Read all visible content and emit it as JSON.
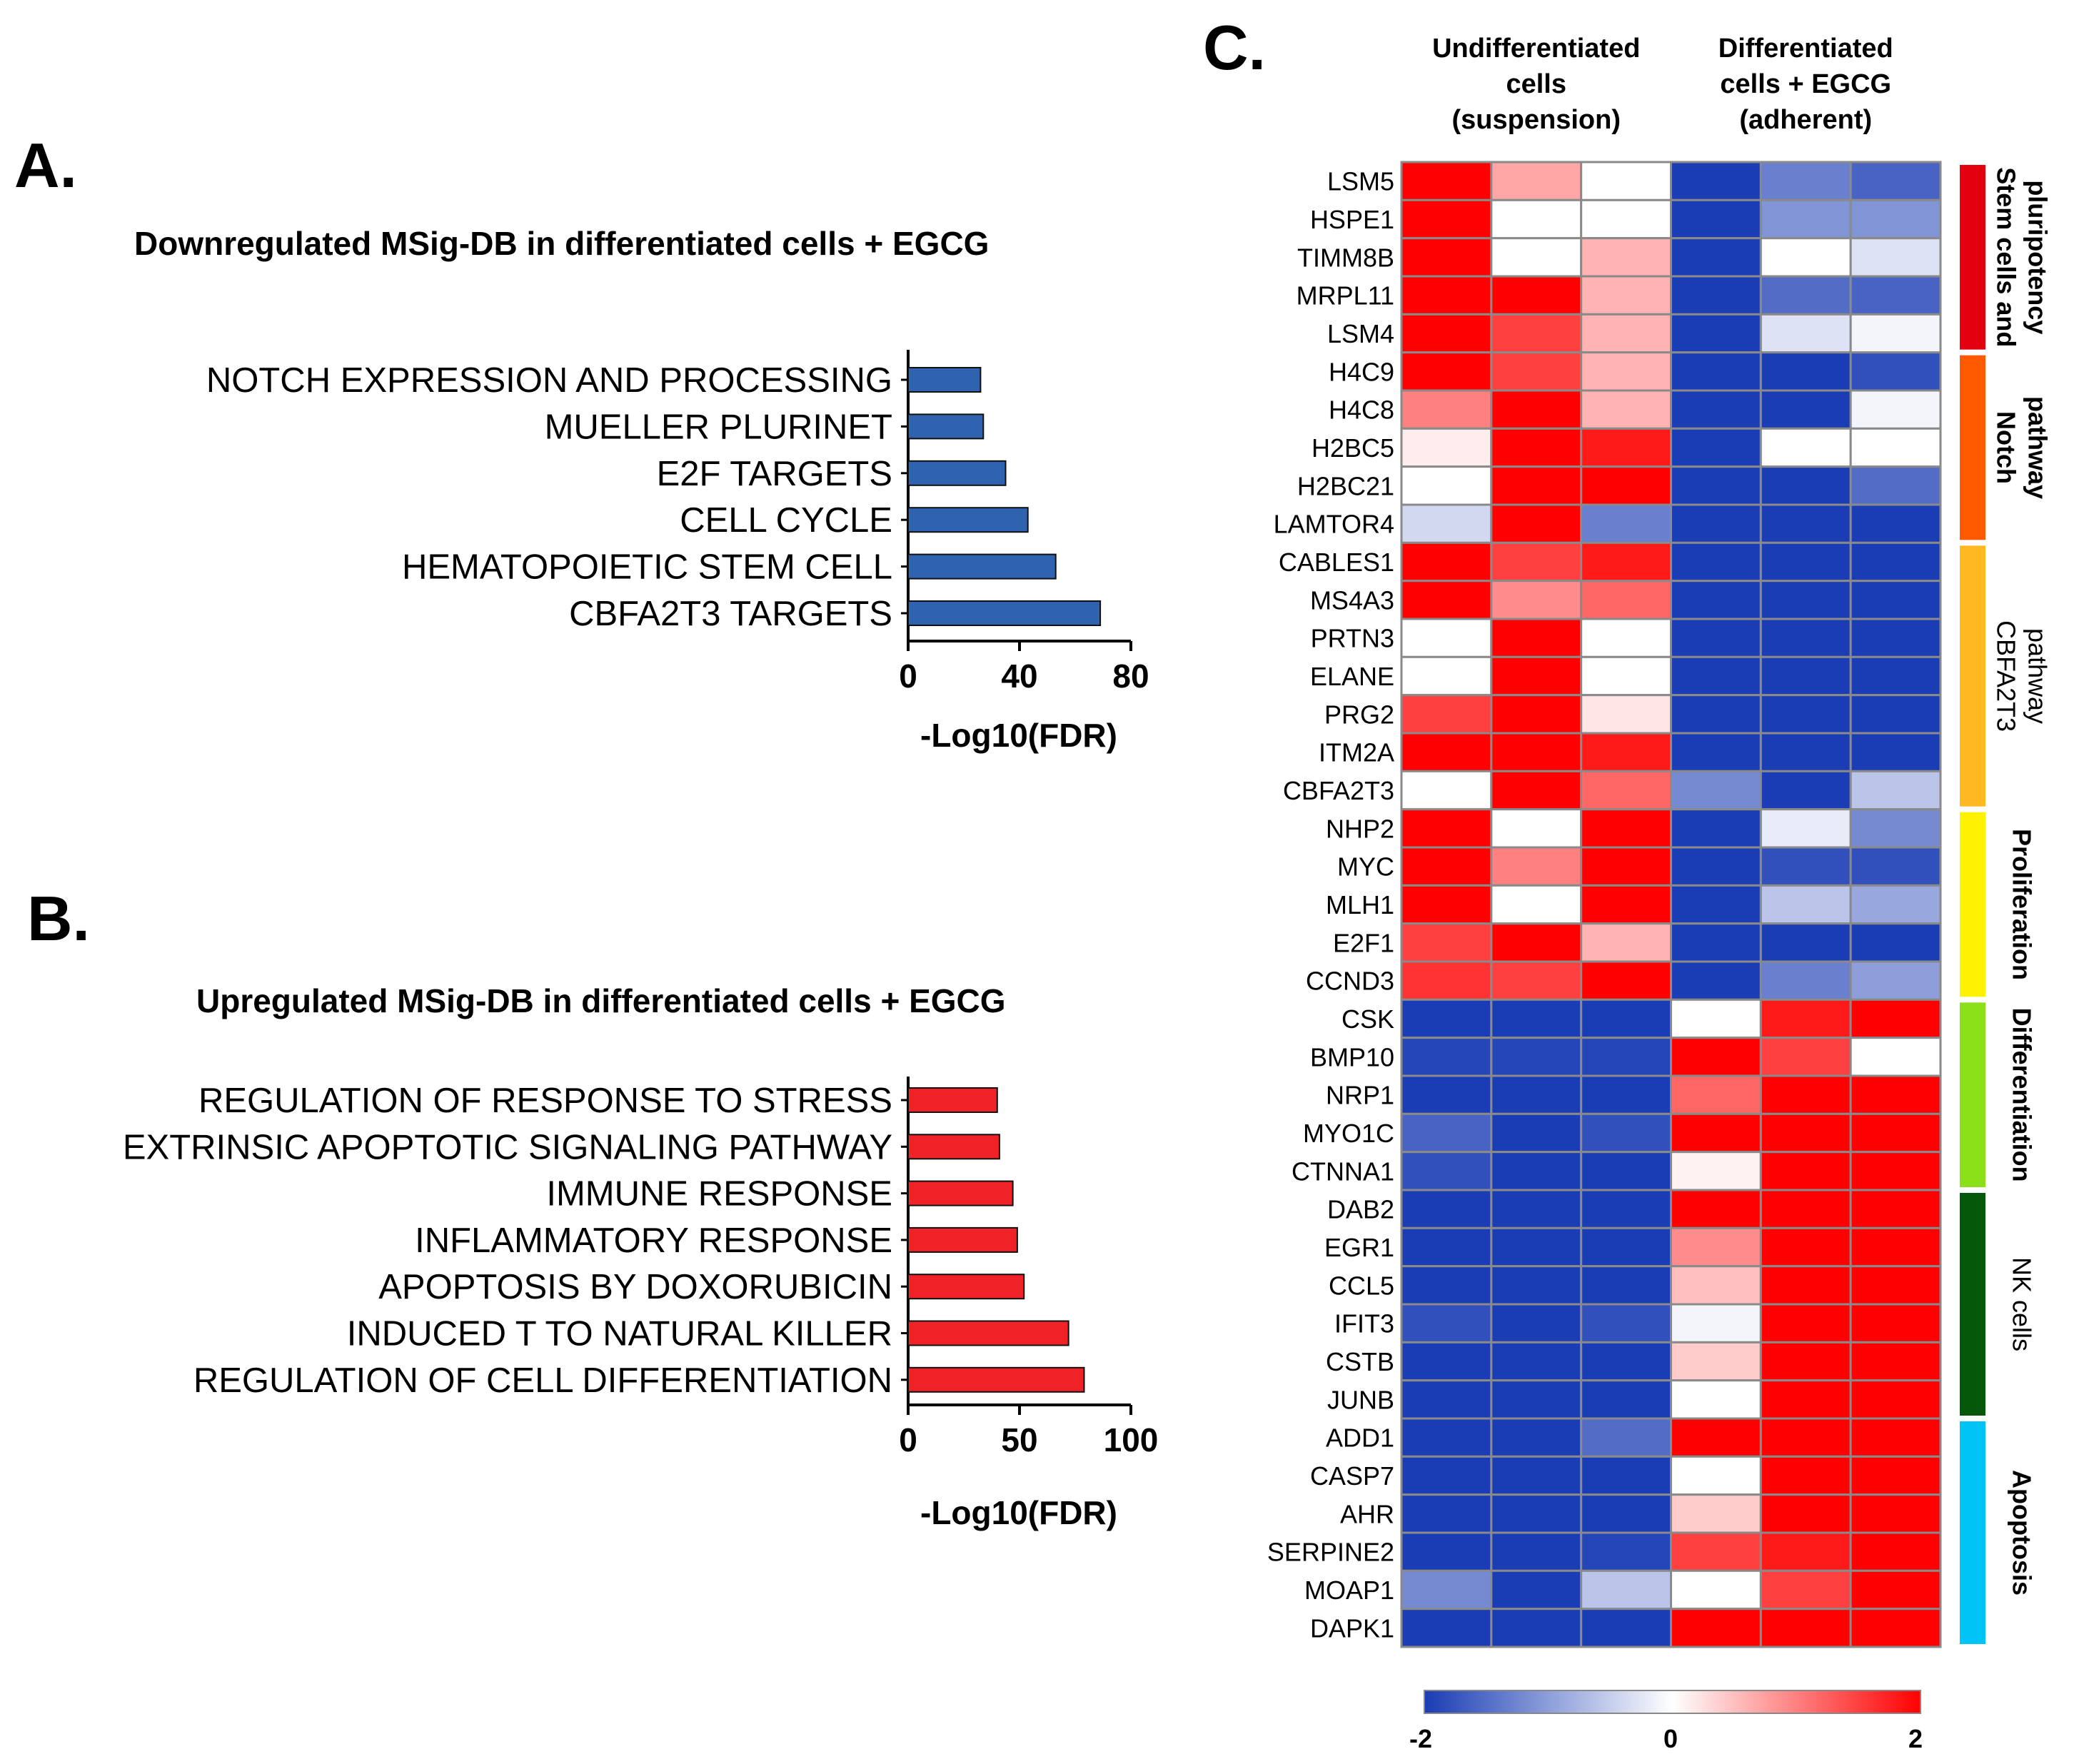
{
  "chart_data": [
    {
      "type": "bar",
      "orientation": "horizontal",
      "panel": "A.",
      "title": "Downregulated MSig-DB in differentiated cells + EGCG",
      "categories": [
        "NOTCH EXPRESSION AND PROCESSING",
        "MUELLER PLURINET",
        "E2F TARGETS",
        "CELL CYCLE",
        "HEMATOPOIETIC STEM CELL",
        "CBFA2T3 TARGETS"
      ],
      "values": [
        26,
        27,
        35,
        43,
        53,
        69
      ],
      "xlabel": "-Log10(FDR)",
      "xlim": [
        0,
        80
      ],
      "xticks": [
        "0",
        "40",
        "80"
      ],
      "color": "#2f63b0"
    },
    {
      "type": "bar",
      "orientation": "horizontal",
      "panel": "B.",
      "title": "Upregulated MSig-DB in differentiated cells + EGCG",
      "categories": [
        "REGULATION OF RESPONSE TO STRESS",
        "EXTRINSIC APOPTOTIC SIGNALING PATHWAY",
        "IMMUNE RESPONSE",
        "INFLAMMATORY RESPONSE",
        "APOPTOSIS BY DOXORUBICIN",
        "INDUCED T TO NATURAL KILLER",
        "REGULATION OF CELL DIFFERENTIATION"
      ],
      "values": [
        40,
        41,
        47,
        49,
        52,
        72,
        79
      ],
      "xlabel": "-Log10(FDR)",
      "xlim": [
        0,
        100
      ],
      "xticks": [
        "0",
        "50",
        "100"
      ],
      "color": "#ee2227"
    },
    {
      "type": "heatmap",
      "panel": "C.",
      "column_groups": [
        {
          "label_lines": [
            "Undifferentiated",
            "cells",
            "(suspension)"
          ],
          "columns": 3
        },
        {
          "label_lines": [
            "Differentiated",
            "cells + EGCG",
            "(adherent)"
          ],
          "columns": 3
        }
      ],
      "rows": [
        "LSM5",
        "HSPE1",
        "TIMM8B",
        "MRPL11",
        "LSM4",
        "H4C9",
        "H4C8",
        "H2BC5",
        "H2BC21",
        "LAMTOR4",
        "CABLES1",
        "MS4A3",
        "PRTN3",
        "ELANE",
        "PRG2",
        "ITM2A",
        "CBFA2T3",
        "NHP2",
        "MYC",
        "MLH1",
        "E2F1",
        "CCND3",
        "CSK",
        "BMP10",
        "NRP1",
        "MYO1C",
        "CTNNA1",
        "DAB2",
        "EGR1",
        "CCL5",
        "IFIT3",
        "CSTB",
        "JUNB",
        "ADD1",
        "CASP7",
        "AHR",
        "SERPINE2",
        "MOAP1",
        "DAPK1"
      ],
      "values": [
        [
          2,
          0.7,
          0,
          -2,
          -1.3,
          -1.6
        ],
        [
          2,
          0,
          0,
          -2,
          -1.1,
          -1.1
        ],
        [
          2,
          0,
          0.6,
          -2,
          0,
          -0.3
        ],
        [
          2,
          2,
          0.6,
          -2,
          -1.5,
          -1.6
        ],
        [
          2,
          1.5,
          0.6,
          -2,
          -0.3,
          -0.1
        ],
        [
          2,
          1.5,
          0.6,
          -2,
          -2,
          -1.8
        ],
        [
          1.0,
          2,
          0.6,
          -2,
          -2,
          -0.1
        ],
        [
          0.15,
          2,
          1.8,
          -2,
          0,
          0
        ],
        [
          0,
          2,
          2,
          -2,
          -2,
          -1.5
        ],
        [
          -0.4,
          2,
          -1.3,
          -2,
          -2,
          -2
        ],
        [
          2,
          1.5,
          1.8,
          -2,
          -2,
          -2
        ],
        [
          2,
          0.9,
          1.2,
          -2,
          -2,
          -2
        ],
        [
          0,
          2,
          0,
          -2,
          -2,
          -2
        ],
        [
          0,
          2,
          0,
          -2,
          -2,
          -2
        ],
        [
          1.5,
          2,
          0.2,
          -2,
          -2,
          -2
        ],
        [
          2,
          2,
          1.8,
          -2,
          -2,
          -2
        ],
        [
          0,
          2,
          1.2,
          -1.2,
          -2,
          -0.6
        ],
        [
          2,
          0,
          2,
          -2,
          -0.2,
          -1.2
        ],
        [
          2,
          1.0,
          2,
          -2,
          -1.8,
          -1.8
        ],
        [
          2,
          0,
          2,
          -2,
          -0.6,
          -0.9
        ],
        [
          1.5,
          2,
          0.6,
          -2,
          -2,
          -2
        ],
        [
          1.6,
          1.5,
          2,
          -2,
          -1.3,
          -1.0
        ],
        [
          -2,
          -2,
          -2,
          0,
          1.8,
          2
        ],
        [
          -1.9,
          -1.9,
          -1.9,
          2,
          1.5,
          0
        ],
        [
          -2,
          -2,
          -2,
          1.2,
          2,
          2
        ],
        [
          -1.6,
          -2,
          -1.8,
          2,
          2,
          2
        ],
        [
          -1.8,
          -2,
          -2,
          0.1,
          2,
          2
        ],
        [
          -2,
          -2,
          -2,
          2,
          2,
          2
        ],
        [
          -2,
          -2,
          -2,
          0.9,
          2,
          2
        ],
        [
          -2,
          -2,
          -2,
          0.5,
          2,
          2
        ],
        [
          -1.8,
          -2,
          -1.8,
          -0.1,
          2,
          2
        ],
        [
          -2,
          -2,
          -2,
          0.4,
          2,
          2
        ],
        [
          -2,
          -2,
          -2,
          0,
          2,
          2
        ],
        [
          -2,
          -2,
          -1.5,
          2,
          2,
          2
        ],
        [
          -2,
          -2,
          -2,
          0,
          2,
          2
        ],
        [
          -2,
          -2,
          -2,
          0.4,
          2,
          2
        ],
        [
          -2,
          -2,
          -1.9,
          1.5,
          1.8,
          2
        ],
        [
          -1.2,
          -2,
          -0.6,
          0,
          1.5,
          2
        ],
        [
          -2,
          -2,
          -2,
          2,
          2,
          2
        ]
      ],
      "row_groups": [
        {
          "lines": [
            "Stem cells and",
            "pluripotency"
          ],
          "start": 0,
          "end": 5,
          "color": "#e3000f",
          "bold": true
        },
        {
          "lines": [
            "Notch",
            "pathway"
          ],
          "start": 5,
          "end": 10,
          "color": "#ff5a00",
          "bold": true
        },
        {
          "lines": [
            "CBFA2T3",
            "pathway"
          ],
          "start": 10,
          "end": 17,
          "color": "#ffb81f",
          "bold": false
        },
        {
          "lines": [
            "Proliferation"
          ],
          "start": 17,
          "end": 22,
          "color": "#fff200",
          "bold": true
        },
        {
          "lines": [
            "Differentiation"
          ],
          "start": 22,
          "end": 27,
          "color": "#8be01a",
          "bold": true
        },
        {
          "lines": [
            "NK cells"
          ],
          "start": 27,
          "end": 33,
          "color": "#05580a",
          "bold": false
        },
        {
          "lines": [
            "Apoptosis"
          ],
          "start": 33,
          "end": 39,
          "color": "#00c4f5",
          "bold": true
        }
      ],
      "color_scale": {
        "min": -2,
        "max": 2,
        "low_color": "#1a3cb4",
        "mid_color": "#ffffff",
        "high_color": "#ff0000",
        "tick_labels": [
          "-2",
          "0",
          "2"
        ]
      }
    }
  ]
}
